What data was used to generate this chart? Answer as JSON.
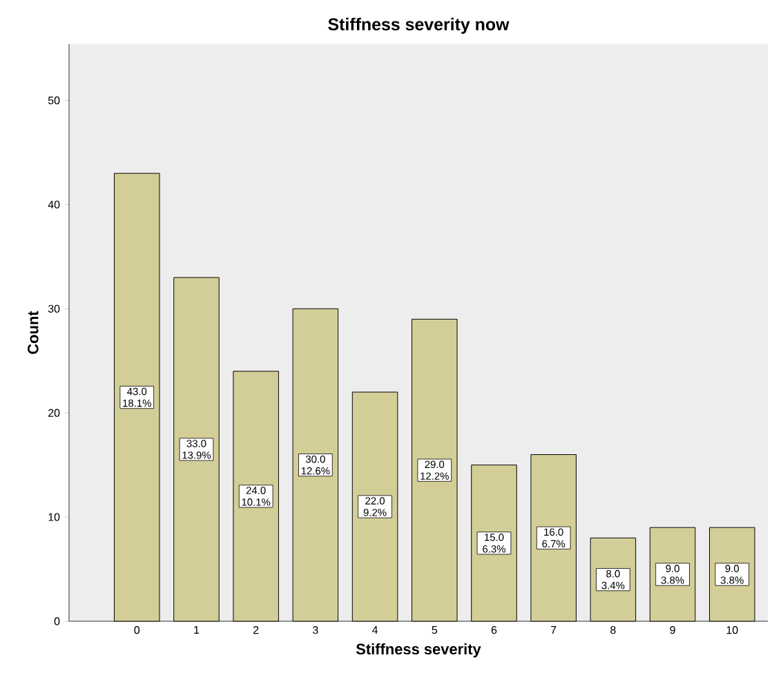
{
  "chart_data": {
    "type": "bar",
    "title": "Stiffness severity now",
    "xlabel": "Stiffness severity",
    "ylabel": "Count",
    "categories": [
      "0",
      "1",
      "2",
      "3",
      "4",
      "5",
      "6",
      "7",
      "8",
      "9",
      "10"
    ],
    "values": [
      43,
      33,
      24,
      30,
      22,
      29,
      15,
      16,
      8,
      9,
      9
    ],
    "value_labels": [
      "43.0 18.1%",
      "33.0 13.9%",
      "24.0 10.1%",
      "30.0 12.6%",
      "22.0 9.2%",
      "29.0 12.2%",
      "15.0 6.3%",
      "16.0 6.7%",
      "8.0 3.4%",
      "9.0 3.8%",
      "9.0 3.8%"
    ],
    "color": "#d3ce97",
    "ylim": [
      0,
      55.4
    ],
    "yticks": [
      0,
      10,
      20,
      30,
      40,
      50
    ],
    "grid": false
  }
}
